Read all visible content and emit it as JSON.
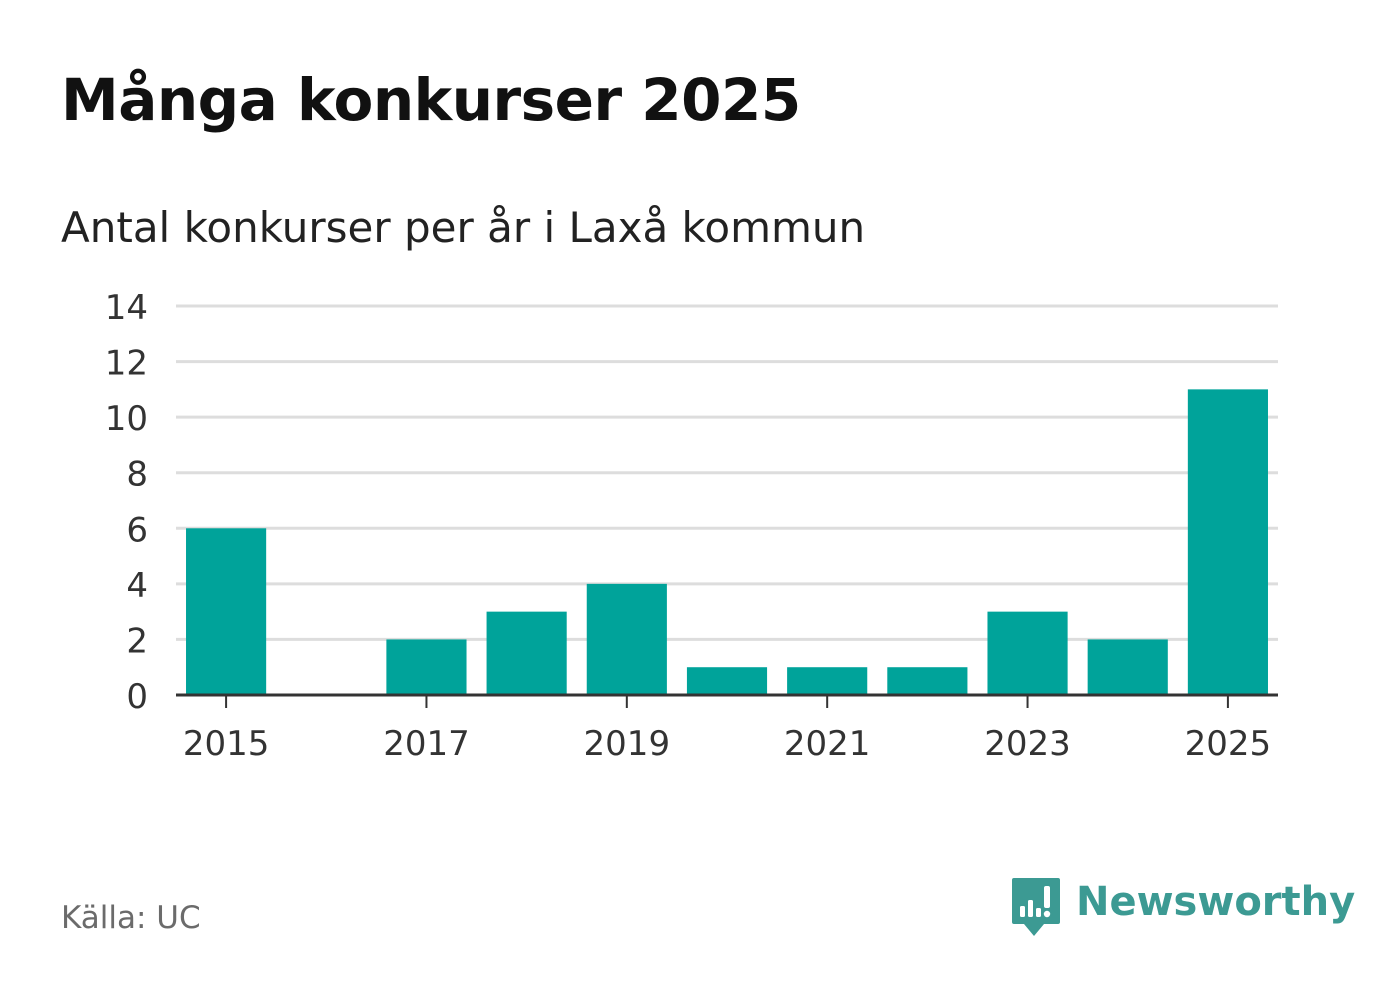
{
  "title": "Många konkurser 2025",
  "subtitle": "Antal konkurser per år i Laxå kommun",
  "source": "Källa: UC",
  "brand": {
    "name": "Newsworthy",
    "logo_icon": "newsworthy-bar-chart-speech-bubble-icon",
    "color": "#3c9a93"
  },
  "chart_data": {
    "type": "bar",
    "categories": [
      "2015",
      "2016",
      "2017",
      "2018",
      "2019",
      "2020",
      "2021",
      "2022",
      "2023",
      "2024",
      "2025"
    ],
    "values": [
      6,
      0,
      2,
      3,
      4,
      1,
      1,
      1,
      3,
      2,
      11
    ],
    "x_tick_labels": [
      "2015",
      "2017",
      "2019",
      "2021",
      "2023",
      "2025"
    ],
    "y_ticks": [
      0,
      2,
      4,
      6,
      8,
      10,
      12,
      14
    ],
    "ylim": [
      0,
      14
    ],
    "xlabel": "",
    "ylabel": "",
    "grid": true,
    "bar_color": "#00a39a",
    "grid_color": "#dddddd",
    "axis_color": "#333333"
  }
}
